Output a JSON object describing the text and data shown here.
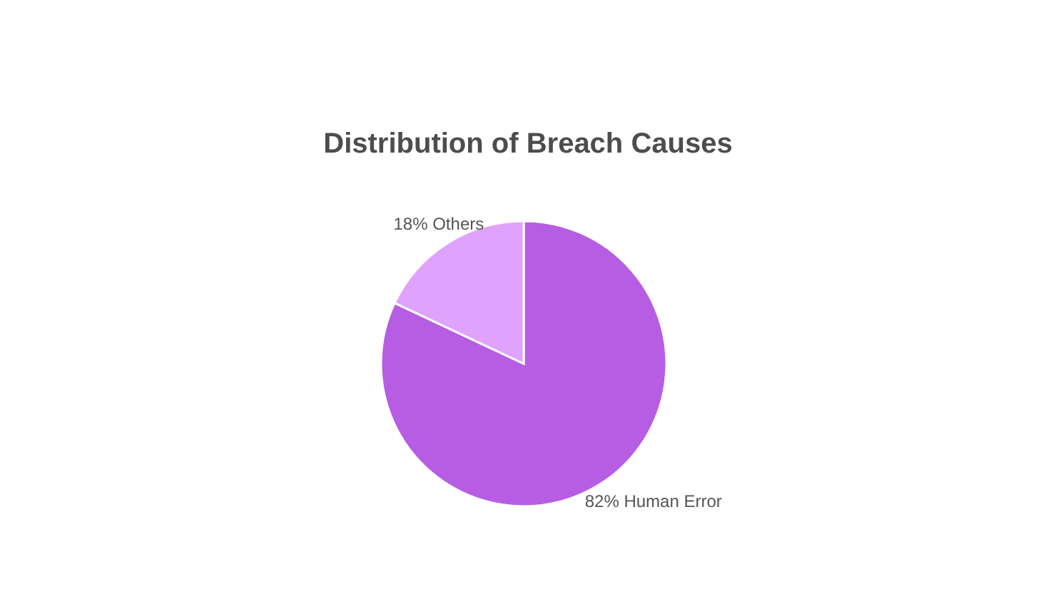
{
  "chart_data": {
    "type": "pie",
    "title": "Distribution of Breach Causes",
    "categories": [
      "Human Error",
      "Others"
    ],
    "values": [
      82,
      18
    ],
    "value_labels": [
      "82%",
      "18%"
    ],
    "colors": [
      "#b65de4",
      "#e0a3fd"
    ],
    "legend": false
  }
}
